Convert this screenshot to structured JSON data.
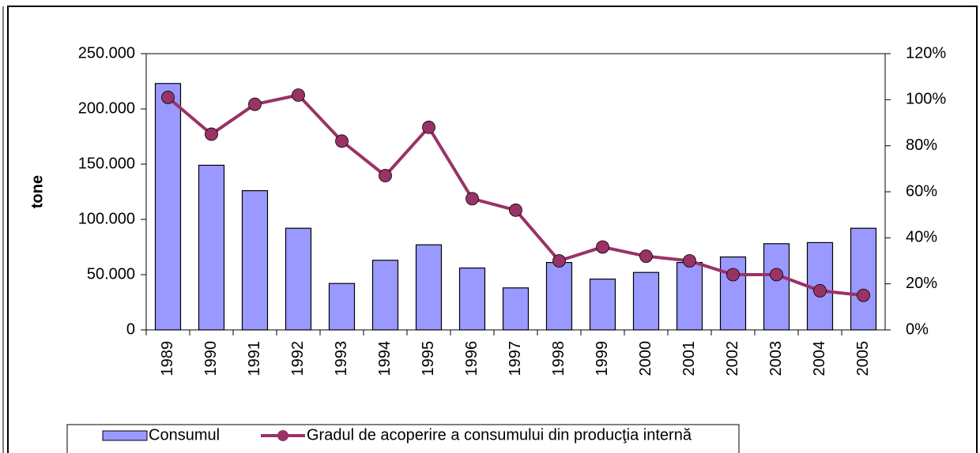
{
  "chart_data": {
    "type": "bar_line",
    "y_label": "tone",
    "categories": [
      "1989",
      "1990",
      "1991",
      "1992",
      "1993",
      "1994",
      "1995",
      "1996",
      "1997",
      "1998",
      "1999",
      "2000",
      "2001",
      "2002",
      "2003",
      "2004",
      "2005"
    ],
    "series": [
      {
        "name": "Consumul",
        "color": "#9999ff",
        "type": "bar",
        "values": [
          223000,
          149000,
          126000,
          92000,
          42000,
          63000,
          77000,
          56000,
          38000,
          61000,
          46000,
          52000,
          61000,
          66000,
          78000,
          79000,
          92000
        ]
      },
      {
        "name": "Gradul de acoperire a consumului din producţia internă",
        "color": "#993366",
        "type": "line",
        "axis": "y2",
        "values": [
          101,
          85,
          98,
          102,
          82,
          67,
          88,
          57,
          52,
          30,
          36,
          32,
          30,
          24,
          24,
          17,
          15
        ]
      }
    ],
    "ylim": [
      0,
      250000
    ],
    "yticks": [
      0,
      {
        "value": 50000,
        "label": "50.000"
      },
      {
        "value": 100000,
        "label": "100.000"
      },
      {
        "value": 150000,
        "label": "150.000"
      },
      {
        "value": 200000,
        "label": "200.000"
      },
      {
        "value": 250000,
        "label": "250.000"
      }
    ],
    "y2lim": [
      0,
      120
    ],
    "y2ticks": [
      {
        "value": 0,
        "label": "0%"
      },
      {
        "value": 20,
        "label": "20%"
      },
      {
        "value": 40,
        "label": "40%"
      },
      {
        "value": 60,
        "label": "60%"
      },
      {
        "value": 80,
        "label": "80%"
      },
      {
        "value": 100,
        "label": "100%"
      },
      {
        "value": 120,
        "label": "120%"
      }
    ]
  }
}
